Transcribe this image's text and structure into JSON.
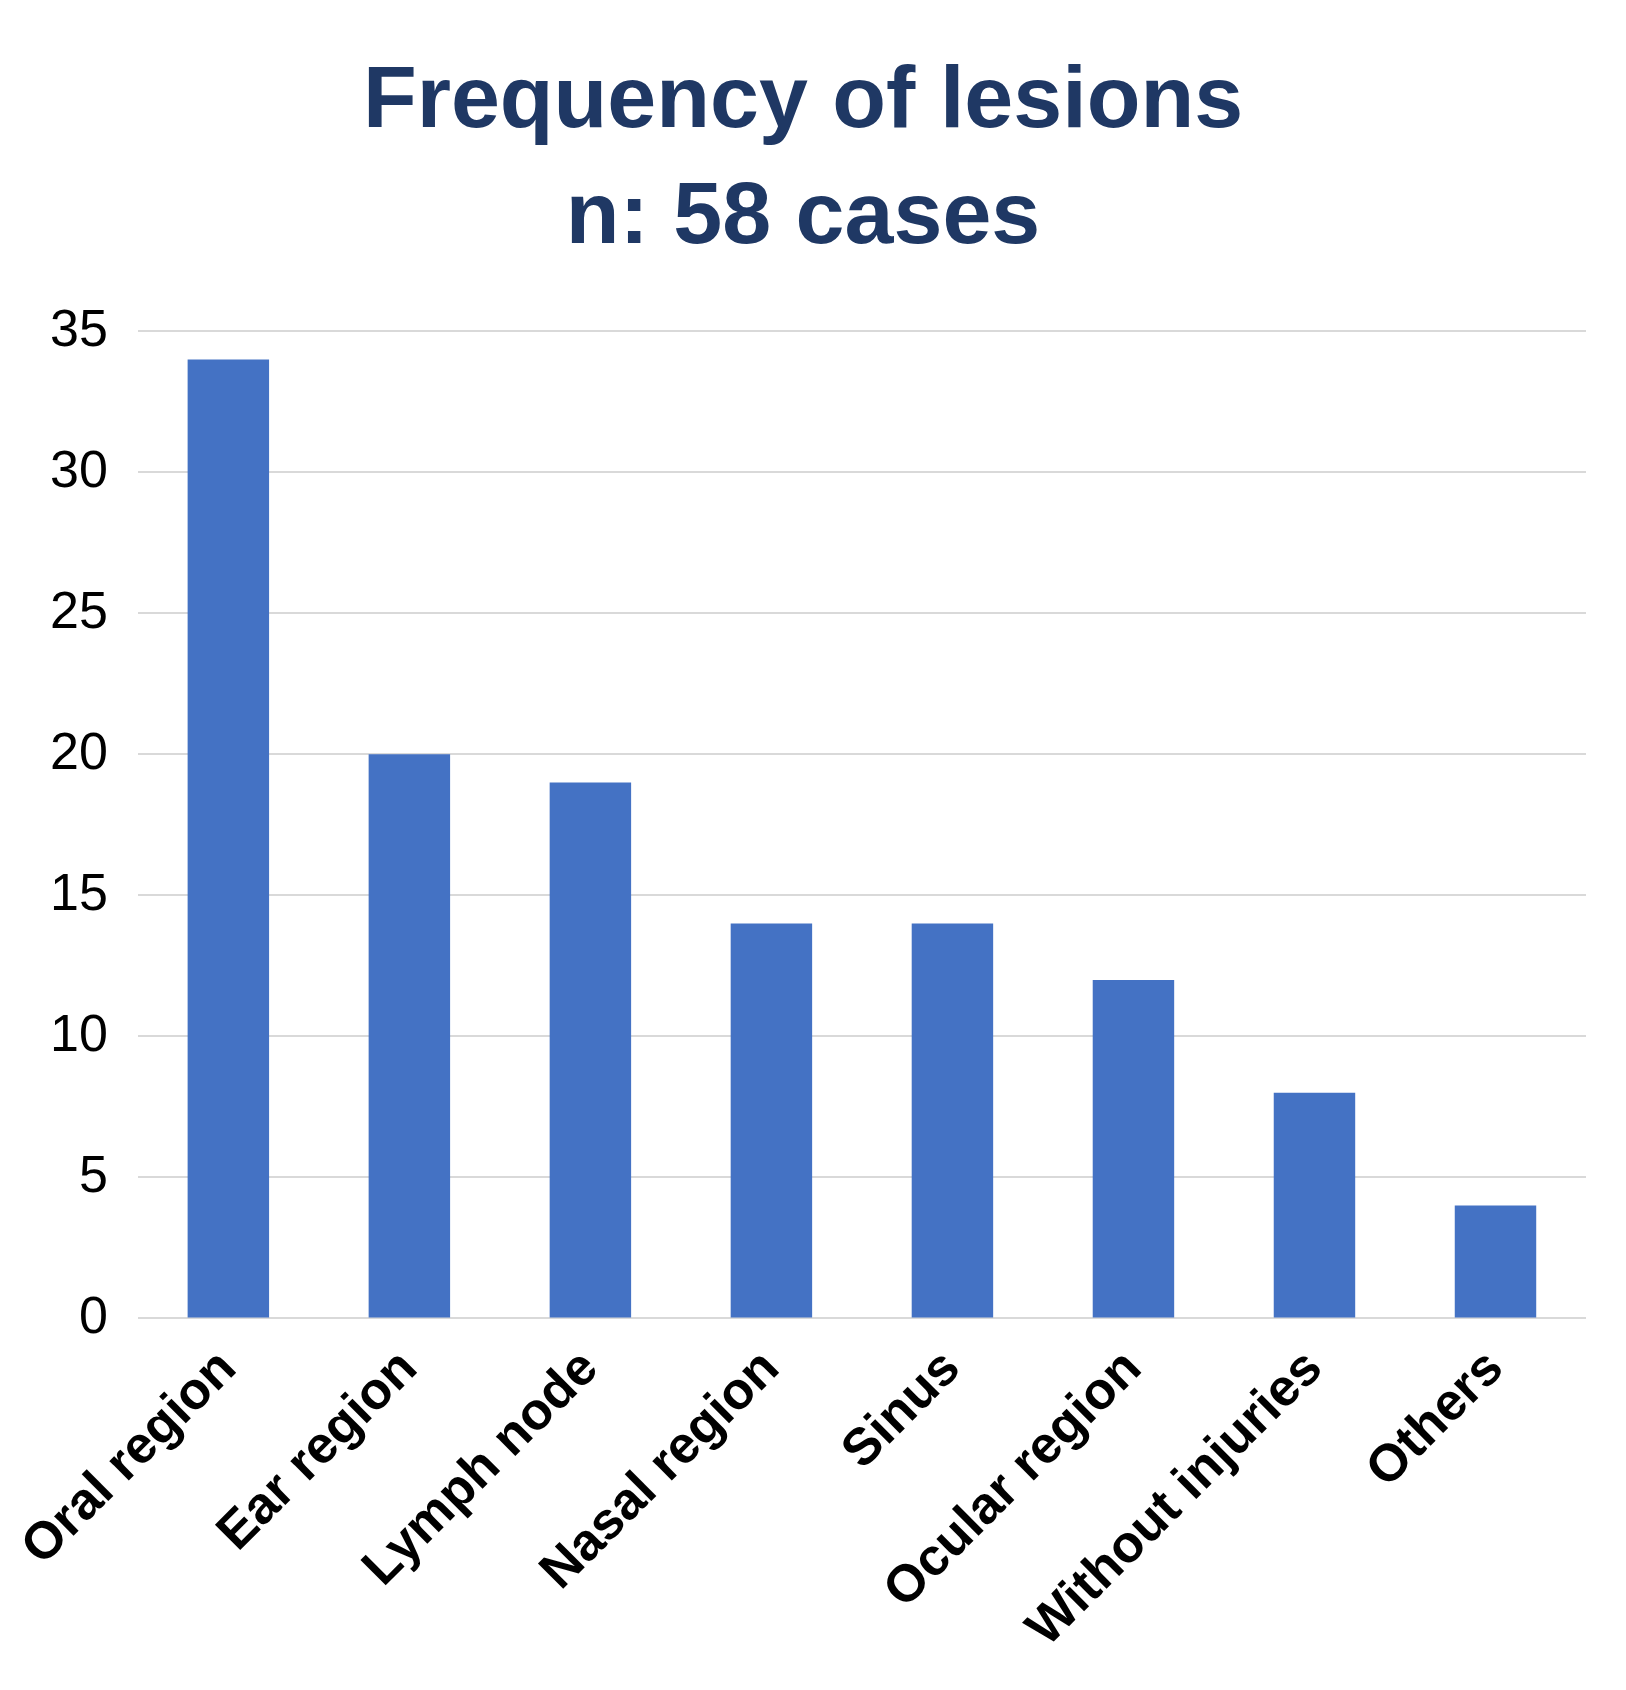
{
  "chart_data": {
    "type": "bar",
    "title": "Frequency of lesions",
    "subtitle": "n: 58 cases",
    "categories": [
      "Oral region",
      "Ear region",
      "Lymph node",
      "Nasal region",
      "Sinus",
      "Ocular region",
      "Without injuries",
      "Others"
    ],
    "values": [
      34,
      20,
      19,
      14,
      14,
      12,
      8,
      4
    ],
    "color": "#4472c4",
    "ylim": [
      0,
      35
    ],
    "yticks": [
      0,
      5,
      10,
      15,
      20,
      25,
      30,
      35
    ],
    "grid": "y",
    "legend": false
  }
}
